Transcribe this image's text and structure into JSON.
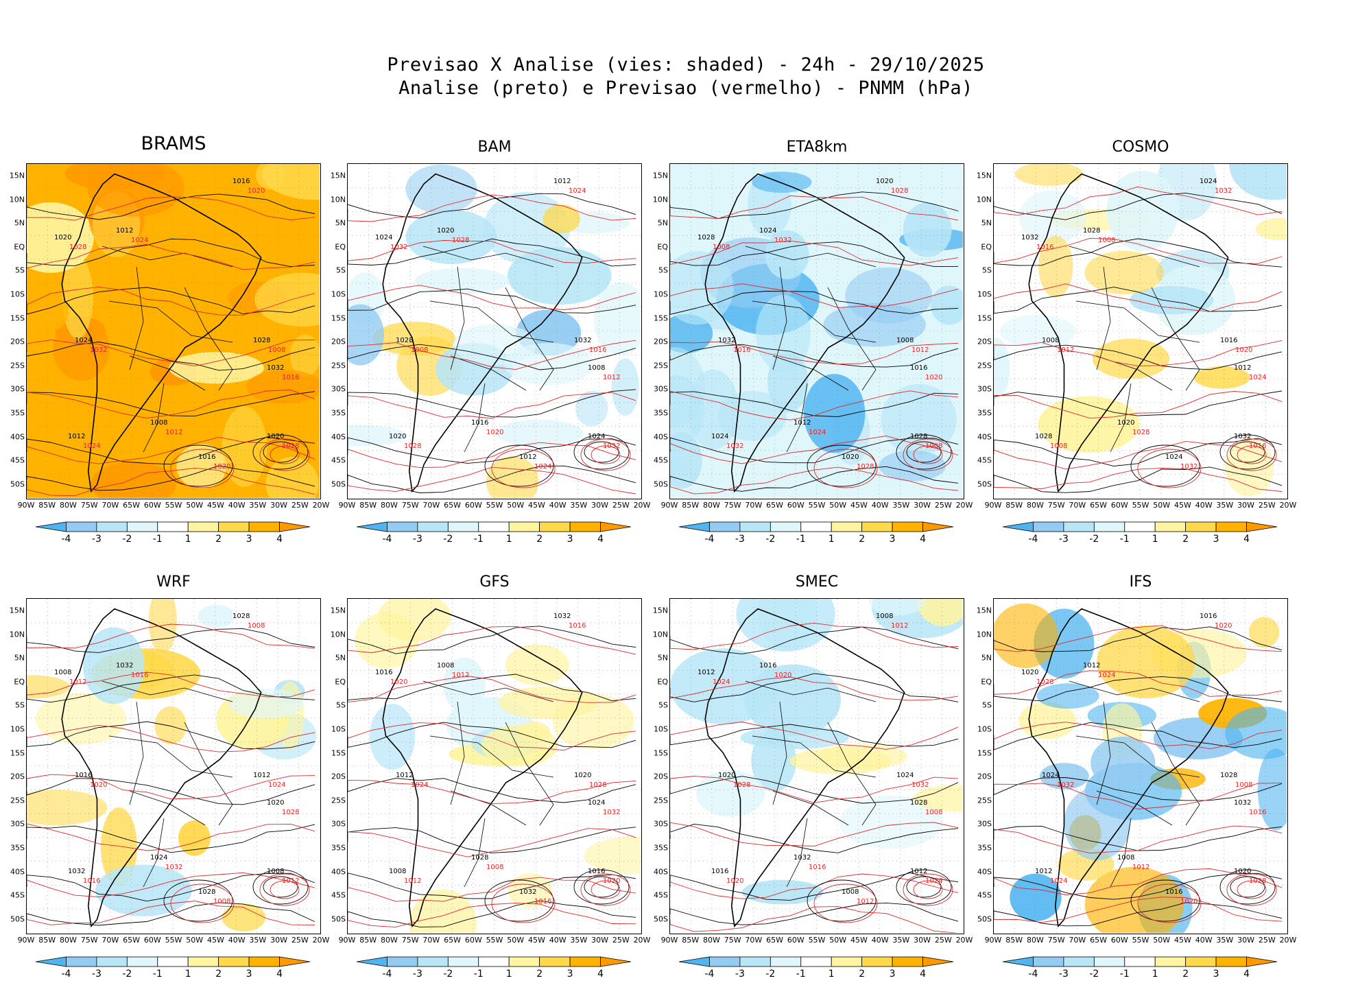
{
  "title": {
    "line1": "Previsao X Analise (vies: shaded) - 24h - 29/10/2025",
    "line2": "Analise (preto) e Previsao (vermelho) - PNMM (hPa)"
  },
  "panels": [
    {
      "name": "BRAMS",
      "bias": "warm-strong",
      "title_size": "big"
    },
    {
      "name": "BAM",
      "bias": "mixed-cool"
    },
    {
      "name": "ETA8km",
      "bias": "cool"
    },
    {
      "name": "COSMO",
      "bias": "mixed-light"
    },
    {
      "name": "WRF",
      "bias": "mixed-light"
    },
    {
      "name": "GFS",
      "bias": "slight"
    },
    {
      "name": "SMEC",
      "bias": "slight"
    },
    {
      "name": "IFS",
      "bias": "mixed-strong"
    }
  ],
  "lat_labels": [
    "15N",
    "10N",
    "5N",
    "EQ",
    "5S",
    "10S",
    "15S",
    "20S",
    "25S",
    "30S",
    "35S",
    "40S",
    "45S",
    "50S"
  ],
  "lon_labels": [
    "90W",
    "85W",
    "80W",
    "75W",
    "70W",
    "65W",
    "60W",
    "55W",
    "50W",
    "45W",
    "40W",
    "35W",
    "30W",
    "25W",
    "20W"
  ],
  "colorbar": {
    "ticks": [
      "-4",
      "-3",
      "-2",
      "-1",
      "1",
      "2",
      "3",
      "4"
    ],
    "colors": [
      "#4fb4f0",
      "#93cbf2",
      "#b8e6f7",
      "#dff6fb",
      "#ffffff",
      "#fff4a0",
      "#ffd94a",
      "#ffb300",
      "#ff9900"
    ]
  },
  "contour_labels_black": [
    "1016",
    "1012",
    "1020",
    "1024",
    "1028",
    "1032",
    "1008"
  ],
  "contour_labels_red": [
    "1016",
    "1012",
    "1020",
    "1024",
    "1028",
    "1032",
    "1008"
  ],
  "colors": {
    "analysis_contour": "#000000",
    "forecast_contour": "#e0282a",
    "grid": "#888888"
  }
}
